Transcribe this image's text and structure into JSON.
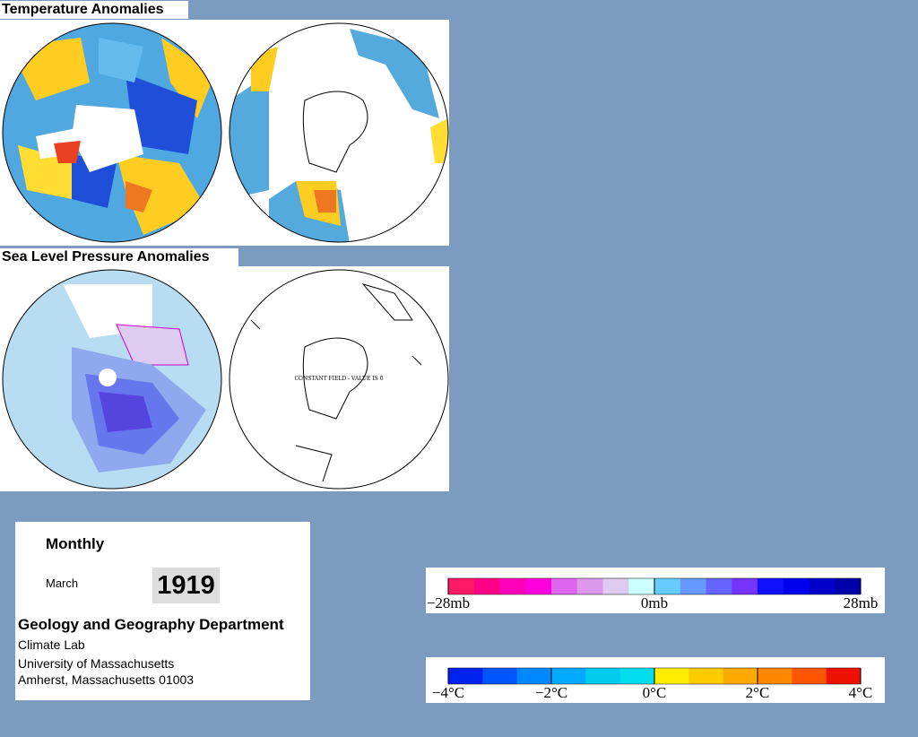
{
  "header": {
    "temperature_title": "Temperature Anomalies",
    "pressure_title": "Sea Level Pressure Anomalies"
  },
  "maps": {
    "constant_field_note": "CONSTANT FIELD - VALUE IS 0"
  },
  "info": {
    "period": "Monthly",
    "month": "March",
    "year": "1919",
    "department": "Geology and Geography Department",
    "lab": "Climate Lab",
    "university": "University of Massachusetts",
    "address": "Amherst, Massachusetts 01003"
  },
  "pressure_legend": {
    "colors": [
      "#ff1a66",
      "#ff0088",
      "#ff00bb",
      "#ff00dd",
      "#dd66ee",
      "#dd99ee",
      "#ddccf0",
      "#ccffff",
      "#66ccff",
      "#6699ff",
      "#6666ff",
      "#7733ff",
      "#1111ff",
      "#0000ee",
      "#0000cc",
      "#0000aa"
    ],
    "labels": [
      "−28mb",
      "0mb",
      "28mb"
    ]
  },
  "temperature_legend": {
    "colors": [
      "#0022ee",
      "#0055ff",
      "#0088ff",
      "#00aaff",
      "#00ccee",
      "#00ddee",
      "#ffee00",
      "#ffcc00",
      "#ffaa00",
      "#ff8800",
      "#ff5500",
      "#ee1100"
    ],
    "labels": [
      "−4°C",
      "−2°C",
      "0°C",
      "2°C",
      "4°C"
    ]
  }
}
